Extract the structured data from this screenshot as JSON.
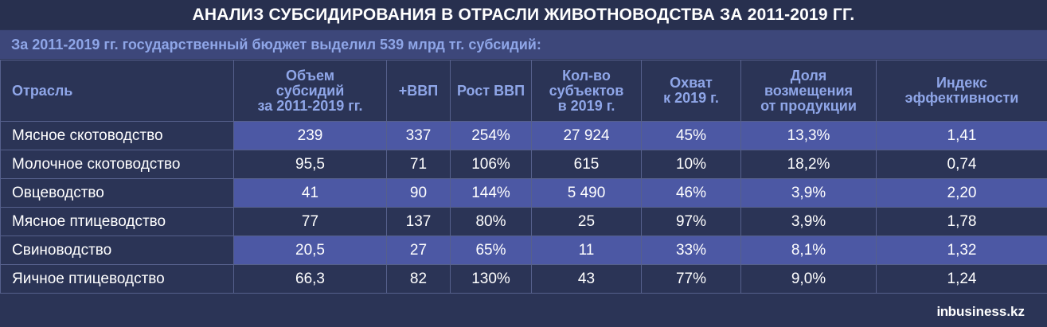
{
  "title": "АНАЛИЗ СУБСИДИРОВАНИЯ В ОТРАСЛИ ЖИВОТНОВОДСТВА ЗА 2011-2019 ГГ.",
  "subtitle": "За 2011-2019 гг. государственный бюджет выделил 539 млрд тг. субсидий:",
  "table": {
    "headers": [
      [
        "Отрасль"
      ],
      [
        "Объем",
        "субсидий",
        "за 2011-2019 гг."
      ],
      [
        "+ВВП"
      ],
      [
        "Рост ВВП"
      ],
      [
        "Кол-во",
        "субъектов",
        "в 2019 г."
      ],
      [
        "Охват",
        "к 2019 г."
      ],
      [
        "Доля",
        "возмещения",
        "от продукции"
      ],
      [
        "Индекс",
        "эффективности"
      ]
    ],
    "rows": [
      [
        "Мясное скотоводство",
        "239",
        "337",
        "254%",
        "27 924",
        "45%",
        "13,3%",
        "1,41"
      ],
      [
        "Молочное скотоводство",
        "95,5",
        "71",
        "106%",
        "615",
        "10%",
        "18,2%",
        "0,74"
      ],
      [
        "Овцеводство",
        "41",
        "90",
        "144%",
        "5 490",
        "46%",
        "3,9%",
        "2,20"
      ],
      [
        "Мясное птицеводство",
        "77",
        "137",
        "80%",
        "25",
        "97%",
        "3,9%",
        "1,78"
      ],
      [
        "Свиноводство",
        "20,5",
        "27",
        "65%",
        "11",
        "33%",
        "8,1%",
        "1,32"
      ],
      [
        "Яичное птицеводство",
        "66,3",
        "82",
        "130%",
        "43",
        "77%",
        "9,0%",
        "1,24"
      ]
    ]
  },
  "logo": {
    "prefix": "in",
    "rest": "business.kz"
  },
  "colors": {
    "background": "#2b3456",
    "highlight": "#4c58a4",
    "header_text": "#8fa6e8"
  }
}
